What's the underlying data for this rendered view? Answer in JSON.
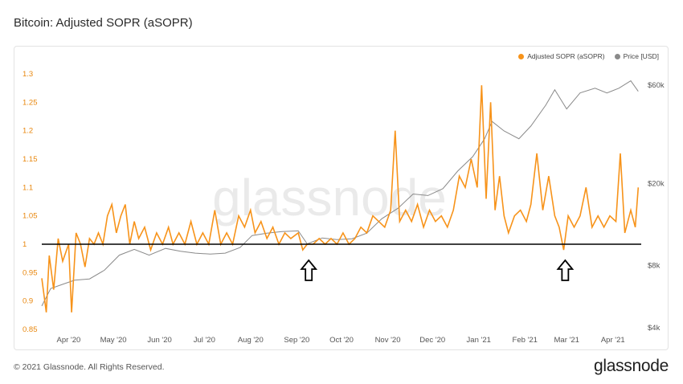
{
  "title": "Bitcoin: Adjusted SOPR (aSOPR)",
  "watermark": "glassnode",
  "footer": "© 2021 Glassnode. All Rights Reserved.",
  "brand": "glassnode",
  "colors": {
    "sopr": "#f7931a",
    "price": "#8a8a8a",
    "baseline": "#000000"
  },
  "chart_data": {
    "type": "line",
    "legend": {
      "placement": "top-right",
      "entries": [
        "Adjusted SOPR (aSOPR)",
        "Price [USD]"
      ]
    },
    "x_ticks": [
      "Apr '20",
      "May '20",
      "Jun '20",
      "Jul '20",
      "Aug '20",
      "Sep '20",
      "Oct '20",
      "Nov '20",
      "Dec '20",
      "Jan '21",
      "Feb '21",
      "Mar '21",
      "Apr '21"
    ],
    "x_range": [
      "2020-03-14",
      "2021-04-20"
    ],
    "y_left": {
      "label": "",
      "ticks": [
        "0.85",
        "0.9",
        "0.95",
        "1",
        "1.05",
        "1.1",
        "1.15",
        "1.2",
        "1.25",
        "1.3"
      ],
      "range": [
        0.85,
        1.3
      ],
      "baseline": 1
    },
    "y_right": {
      "scale": "log",
      "ticks": [
        "$4k",
        "$8k",
        "$20k",
        "$60k"
      ],
      "tick_values": [
        4000,
        8000,
        20000,
        60000
      ]
    },
    "series": [
      {
        "name": "Adjusted SOPR (aSOPR)",
        "axis": "left",
        "points": [
          [
            "2020-03-14",
            0.94
          ],
          [
            "2020-03-17",
            0.88
          ],
          [
            "2020-03-19",
            0.98
          ],
          [
            "2020-03-22",
            0.92
          ],
          [
            "2020-03-25",
            1.01
          ],
          [
            "2020-03-28",
            0.97
          ],
          [
            "2020-04-01",
            1.0
          ],
          [
            "2020-04-03",
            0.88
          ],
          [
            "2020-04-06",
            1.02
          ],
          [
            "2020-04-09",
            1.0
          ],
          [
            "2020-04-12",
            0.96
          ],
          [
            "2020-04-15",
            1.01
          ],
          [
            "2020-04-18",
            1.0
          ],
          [
            "2020-04-21",
            1.02
          ],
          [
            "2020-04-24",
            1.0
          ],
          [
            "2020-04-27",
            1.05
          ],
          [
            "2020-04-30",
            1.07
          ],
          [
            "2020-05-03",
            1.02
          ],
          [
            "2020-05-06",
            1.05
          ],
          [
            "2020-05-09",
            1.07
          ],
          [
            "2020-05-12",
            1.0
          ],
          [
            "2020-05-15",
            1.04
          ],
          [
            "2020-05-18",
            1.01
          ],
          [
            "2020-05-22",
            1.03
          ],
          [
            "2020-05-26",
            0.99
          ],
          [
            "2020-05-30",
            1.02
          ],
          [
            "2020-06-03",
            1.0
          ],
          [
            "2020-06-07",
            1.03
          ],
          [
            "2020-06-10",
            1.0
          ],
          [
            "2020-06-14",
            1.02
          ],
          [
            "2020-06-18",
            1.0
          ],
          [
            "2020-06-22",
            1.04
          ],
          [
            "2020-06-26",
            1.0
          ],
          [
            "2020-06-30",
            1.02
          ],
          [
            "2020-07-04",
            1.0
          ],
          [
            "2020-07-08",
            1.06
          ],
          [
            "2020-07-12",
            1.0
          ],
          [
            "2020-07-16",
            1.02
          ],
          [
            "2020-07-20",
            1.0
          ],
          [
            "2020-07-24",
            1.05
          ],
          [
            "2020-07-28",
            1.03
          ],
          [
            "2020-08-01",
            1.06
          ],
          [
            "2020-08-04",
            1.02
          ],
          [
            "2020-08-08",
            1.04
          ],
          [
            "2020-08-12",
            1.01
          ],
          [
            "2020-08-16",
            1.03
          ],
          [
            "2020-08-20",
            1.0
          ],
          [
            "2020-08-24",
            1.02
          ],
          [
            "2020-08-28",
            1.01
          ],
          [
            "2020-09-02",
            1.02
          ],
          [
            "2020-09-05",
            0.99
          ],
          [
            "2020-09-08",
            1.0
          ],
          [
            "2020-09-12",
            1.0
          ],
          [
            "2020-09-16",
            1.01
          ],
          [
            "2020-09-20",
            1.0
          ],
          [
            "2020-09-24",
            1.01
          ],
          [
            "2020-09-28",
            1.0
          ],
          [
            "2020-10-02",
            1.02
          ],
          [
            "2020-10-06",
            1.0
          ],
          [
            "2020-10-10",
            1.01
          ],
          [
            "2020-10-14",
            1.03
          ],
          [
            "2020-10-18",
            1.02
          ],
          [
            "2020-10-22",
            1.05
          ],
          [
            "2020-10-26",
            1.04
          ],
          [
            "2020-10-30",
            1.03
          ],
          [
            "2020-11-03",
            1.06
          ],
          [
            "2020-11-06",
            1.2
          ],
          [
            "2020-11-09",
            1.04
          ],
          [
            "2020-11-13",
            1.06
          ],
          [
            "2020-11-17",
            1.04
          ],
          [
            "2020-11-21",
            1.07
          ],
          [
            "2020-11-25",
            1.03
          ],
          [
            "2020-11-29",
            1.06
          ],
          [
            "2020-12-03",
            1.04
          ],
          [
            "2020-12-07",
            1.05
          ],
          [
            "2020-12-11",
            1.03
          ],
          [
            "2020-12-15",
            1.06
          ],
          [
            "2020-12-19",
            1.12
          ],
          [
            "2020-12-23",
            1.1
          ],
          [
            "2020-12-27",
            1.15
          ],
          [
            "2020-12-31",
            1.1
          ],
          [
            "2021-01-03",
            1.28
          ],
          [
            "2021-01-06",
            1.08
          ],
          [
            "2021-01-09",
            1.25
          ],
          [
            "2021-01-12",
            1.06
          ],
          [
            "2021-01-15",
            1.12
          ],
          [
            "2021-01-18",
            1.05
          ],
          [
            "2021-01-21",
            1.02
          ],
          [
            "2021-01-25",
            1.05
          ],
          [
            "2021-01-29",
            1.06
          ],
          [
            "2021-02-02",
            1.04
          ],
          [
            "2021-02-05",
            1.07
          ],
          [
            "2021-02-09",
            1.16
          ],
          [
            "2021-02-13",
            1.06
          ],
          [
            "2021-02-17",
            1.12
          ],
          [
            "2021-02-21",
            1.05
          ],
          [
            "2021-02-24",
            1.03
          ],
          [
            "2021-02-27",
            0.99
          ],
          [
            "2021-03-02",
            1.05
          ],
          [
            "2021-03-06",
            1.03
          ],
          [
            "2021-03-10",
            1.05
          ],
          [
            "2021-03-14",
            1.1
          ],
          [
            "2021-03-18",
            1.03
          ],
          [
            "2021-03-22",
            1.05
          ],
          [
            "2021-03-26",
            1.03
          ],
          [
            "2021-03-30",
            1.05
          ],
          [
            "2021-04-03",
            1.04
          ],
          [
            "2021-04-06",
            1.16
          ],
          [
            "2021-04-09",
            1.02
          ],
          [
            "2021-04-13",
            1.06
          ],
          [
            "2021-04-16",
            1.03
          ],
          [
            "2021-04-18",
            1.1
          ]
        ]
      },
      {
        "name": "Price [USD]",
        "axis": "right",
        "points": [
          [
            "2020-03-14",
            5100
          ],
          [
            "2020-03-20",
            6200
          ],
          [
            "2020-03-28",
            6500
          ],
          [
            "2020-04-05",
            6800
          ],
          [
            "2020-04-15",
            6900
          ],
          [
            "2020-04-25",
            7600
          ],
          [
            "2020-05-05",
            9000
          ],
          [
            "2020-05-15",
            9600
          ],
          [
            "2020-05-25",
            9000
          ],
          [
            "2020-06-05",
            9700
          ],
          [
            "2020-06-15",
            9400
          ],
          [
            "2020-06-25",
            9200
          ],
          [
            "2020-07-05",
            9100
          ],
          [
            "2020-07-15",
            9200
          ],
          [
            "2020-07-25",
            9800
          ],
          [
            "2020-08-02",
            11200
          ],
          [
            "2020-08-12",
            11500
          ],
          [
            "2020-08-22",
            11700
          ],
          [
            "2020-09-02",
            11800
          ],
          [
            "2020-09-08",
            10200
          ],
          [
            "2020-09-18",
            10900
          ],
          [
            "2020-09-28",
            10700
          ],
          [
            "2020-10-08",
            10800
          ],
          [
            "2020-10-18",
            11500
          ],
          [
            "2020-10-28",
            13500
          ],
          [
            "2020-11-08",
            15200
          ],
          [
            "2020-11-18",
            17800
          ],
          [
            "2020-11-28",
            17500
          ],
          [
            "2020-12-08",
            18900
          ],
          [
            "2020-12-18",
            23000
          ],
          [
            "2020-12-28",
            27000
          ],
          [
            "2021-01-05",
            33000
          ],
          [
            "2021-01-10",
            40000
          ],
          [
            "2021-01-18",
            36000
          ],
          [
            "2021-01-28",
            33000
          ],
          [
            "2021-02-05",
            38000
          ],
          [
            "2021-02-15",
            48000
          ],
          [
            "2021-02-21",
            57000
          ],
          [
            "2021-03-01",
            46000
          ],
          [
            "2021-03-10",
            55000
          ],
          [
            "2021-03-20",
            58000
          ],
          [
            "2021-03-28",
            55000
          ],
          [
            "2021-04-05",
            58000
          ],
          [
            "2021-04-13",
            63000
          ],
          [
            "2021-04-18",
            56000
          ]
        ]
      }
    ],
    "annotations": [
      {
        "type": "arrow-up",
        "x": "2020-09-09",
        "value": 0.985
      },
      {
        "type": "arrow-up",
        "x": "2021-02-28",
        "value": 0.985
      }
    ]
  }
}
